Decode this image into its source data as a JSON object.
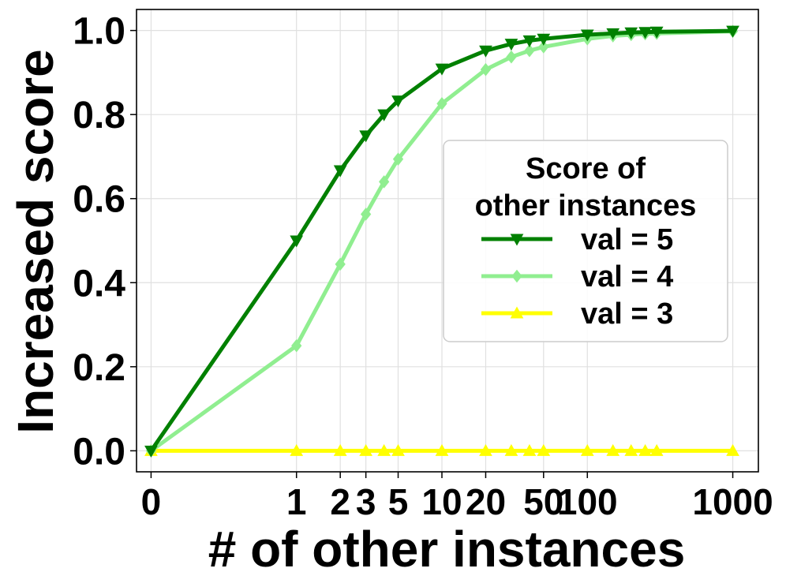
{
  "chart_data": {
    "type": "line",
    "xlabel": "# of other instances",
    "ylabel": "Increased score",
    "x_scale": "symlog",
    "xlim": [
      -0.1,
      1500
    ],
    "ylim": [
      -0.05,
      1.05
    ],
    "x_ticks": [
      0,
      1,
      2,
      3,
      5,
      10,
      20,
      50,
      100,
      1000
    ],
    "x_tick_labels": [
      "0",
      "1",
      "2",
      "3",
      "5",
      "10",
      "20",
      "50",
      "100",
      "1000"
    ],
    "y_ticks": [
      0.0,
      0.2,
      0.4,
      0.6,
      0.8,
      1.0
    ],
    "y_tick_labels": [
      "0.0",
      "0.2",
      "0.4",
      "0.6",
      "0.8",
      "1.0"
    ],
    "grid": true,
    "legend": {
      "title_lines": [
        "Score of",
        "other instances"
      ],
      "placement": "center-right"
    },
    "x": [
      0,
      1,
      2,
      3,
      4,
      5,
      10,
      20,
      30,
      40,
      50,
      100,
      150,
      200,
      250,
      300,
      1000
    ],
    "series": [
      {
        "name": "val = 5",
        "color": "#008000",
        "marker": "triangle-down",
        "values": [
          0.0,
          0.5,
          0.667,
          0.75,
          0.8,
          0.833,
          0.909,
          0.952,
          0.968,
          0.976,
          0.98,
          0.99,
          0.993,
          0.995,
          0.996,
          0.997,
          0.999
        ]
      },
      {
        "name": "val = 4",
        "color": "#90EE90",
        "marker": "diamond",
        "values": [
          0.0,
          0.25,
          0.444,
          0.563,
          0.64,
          0.694,
          0.826,
          0.907,
          0.937,
          0.952,
          0.961,
          0.98,
          0.987,
          0.99,
          0.992,
          0.993,
          0.998
        ]
      },
      {
        "name": "val = 3",
        "color": "#FFFF00",
        "marker": "triangle-up",
        "values": [
          0,
          0,
          0,
          0,
          0,
          0,
          0,
          0,
          0,
          0,
          0,
          0,
          0,
          0,
          0,
          0,
          0
        ]
      }
    ]
  }
}
